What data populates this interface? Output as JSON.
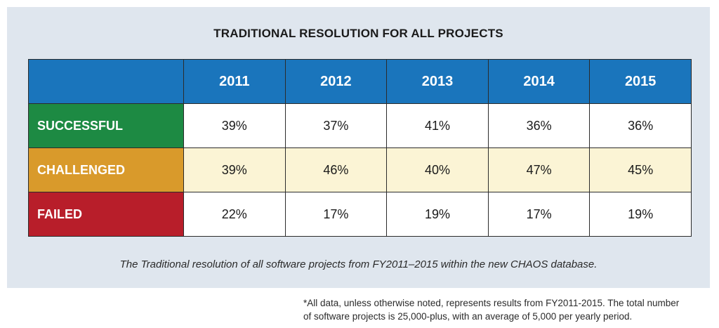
{
  "title": "TRADITIONAL RESOLUTION FOR ALL PROJECTS",
  "table": {
    "columns": [
      "",
      "2011",
      "2012",
      "2013",
      "2014",
      "2015"
    ],
    "rows": [
      {
        "label": "SUCCESSFUL",
        "values": [
          "39%",
          "37%",
          "41%",
          "36%",
          "36%"
        ]
      },
      {
        "label": "CHALLENGED",
        "values": [
          "39%",
          "46%",
          "40%",
          "47%",
          "45%"
        ]
      },
      {
        "label": "FAILED",
        "values": [
          "22%",
          "17%",
          "19%",
          "17%",
          "19%"
        ]
      }
    ]
  },
  "caption": "The Traditional resolution of all software projects from FY2011–2015 within the new CHAOS database.",
  "footnote": {
    "line1": "*All data, unless otherwise noted, represents results from FY2011-2015. The total number",
    "line2": "of software projects is 25,000-plus, with an average of 5,000 per yearly period."
  },
  "colors": {
    "header_blue": "#1a75bc",
    "successful_green": "#1d8a43",
    "challenged_orange": "#d99a2b",
    "failed_red": "#b81e2a",
    "challenged_row_bg": "#fbf4d5",
    "panel_bg": "#dfe6ee"
  }
}
